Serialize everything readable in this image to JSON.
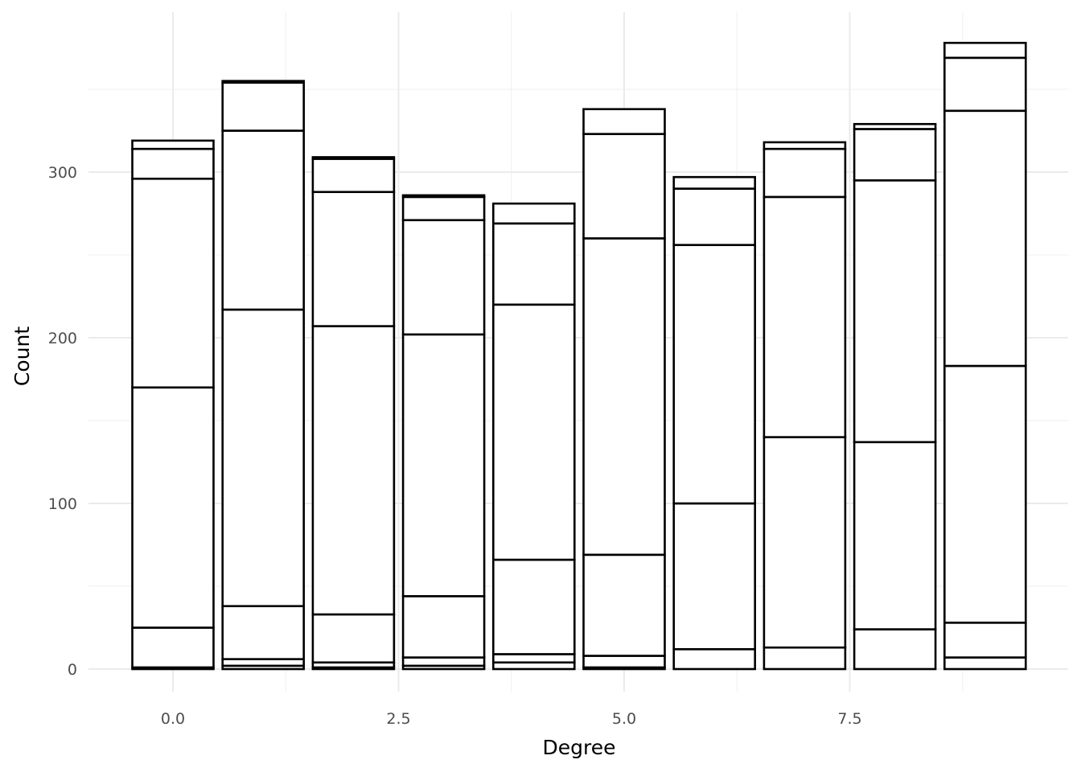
{
  "chart_data": {
    "type": "bar",
    "stacked": true,
    "title": "",
    "xlabel": "Degree",
    "ylabel": "Count",
    "xlim": [
      -0.95,
      9.95
    ],
    "ylim": [
      -13,
      380
    ],
    "x_ticks": [
      0.0,
      2.5,
      5.0,
      7.5
    ],
    "x_tick_labels": [
      "0.0",
      "2.5",
      "5.0",
      "7.5"
    ],
    "y_ticks": [
      0,
      100,
      200,
      300
    ],
    "y_tick_labels": [
      "0",
      "100",
      "200",
      "300"
    ],
    "grid": true,
    "bar_fill": "#ffffff",
    "bar_outline": "#000000",
    "bars": [
      {
        "x": 0,
        "boundaries": [
          0,
          1,
          25,
          170,
          296,
          314,
          319
        ]
      },
      {
        "x": 1,
        "boundaries": [
          0,
          2,
          6,
          38,
          217,
          325,
          354,
          355
        ]
      },
      {
        "x": 2,
        "boundaries": [
          0,
          1,
          4,
          33,
          207,
          288,
          308,
          309
        ]
      },
      {
        "x": 3,
        "boundaries": [
          0,
          2,
          7,
          44,
          202,
          271,
          285,
          286
        ]
      },
      {
        "x": 4,
        "boundaries": [
          0,
          4,
          9,
          66,
          220,
          269,
          281
        ]
      },
      {
        "x": 5,
        "boundaries": [
          0,
          1,
          8,
          69,
          260,
          323,
          338
        ]
      },
      {
        "x": 6,
        "boundaries": [
          0,
          12,
          100,
          256,
          290,
          297
        ]
      },
      {
        "x": 7,
        "boundaries": [
          0,
          13,
          140,
          285,
          314,
          318
        ]
      },
      {
        "x": 8,
        "boundaries": [
          0,
          24,
          137,
          295,
          326,
          329
        ]
      },
      {
        "x": 9,
        "boundaries": [
          0,
          7,
          28,
          183,
          337,
          369,
          378
        ]
      }
    ]
  }
}
